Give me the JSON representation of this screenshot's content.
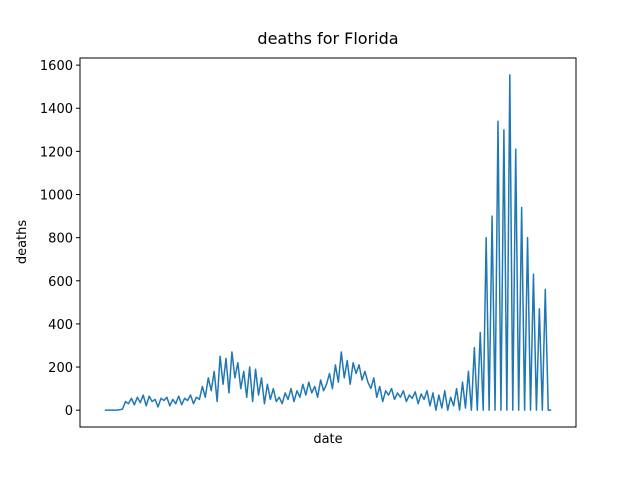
{
  "chart_data": {
    "type": "line",
    "title": "deaths for Florida",
    "xlabel": "date",
    "ylabel": "deaths",
    "color": "#1f77b4",
    "grid": false,
    "ylim": [
      -78,
      1633
    ],
    "yticks": [
      0,
      200,
      400,
      600,
      800,
      1000,
      1200,
      1400,
      1600
    ],
    "values": [
      0,
      0,
      0,
      0,
      0,
      2,
      5,
      40,
      30,
      55,
      25,
      60,
      35,
      70,
      20,
      65,
      40,
      50,
      15,
      55,
      45,
      60,
      20,
      50,
      30,
      65,
      25,
      55,
      45,
      70,
      30,
      60,
      50,
      110,
      60,
      150,
      90,
      180,
      40,
      250,
      120,
      240,
      80,
      270,
      150,
      220,
      100,
      180,
      60,
      200,
      40,
      190,
      70,
      150,
      30,
      120,
      50,
      100,
      40,
      60,
      30,
      80,
      50,
      100,
      40,
      90,
      60,
      120,
      70,
      130,
      80,
      110,
      60,
      140,
      90,
      120,
      170,
      100,
      210,
      130,
      270,
      150,
      230,
      120,
      220,
      170,
      210,
      140,
      180,
      130,
      100,
      150,
      60,
      110,
      40,
      90,
      70,
      100,
      50,
      80,
      60,
      90,
      40,
      70,
      55,
      85,
      30,
      75,
      50,
      90,
      20,
      80,
      0,
      70,
      10,
      90,
      0,
      60,
      20,
      100,
      0,
      130,
      10,
      180,
      0,
      290,
      0,
      360,
      0,
      800,
      0,
      900,
      0,
      1340,
      0,
      1300,
      0,
      1555,
      0,
      1210,
      0,
      940,
      0,
      800,
      0,
      630,
      0,
      470,
      0,
      560,
      0,
      0
    ]
  }
}
